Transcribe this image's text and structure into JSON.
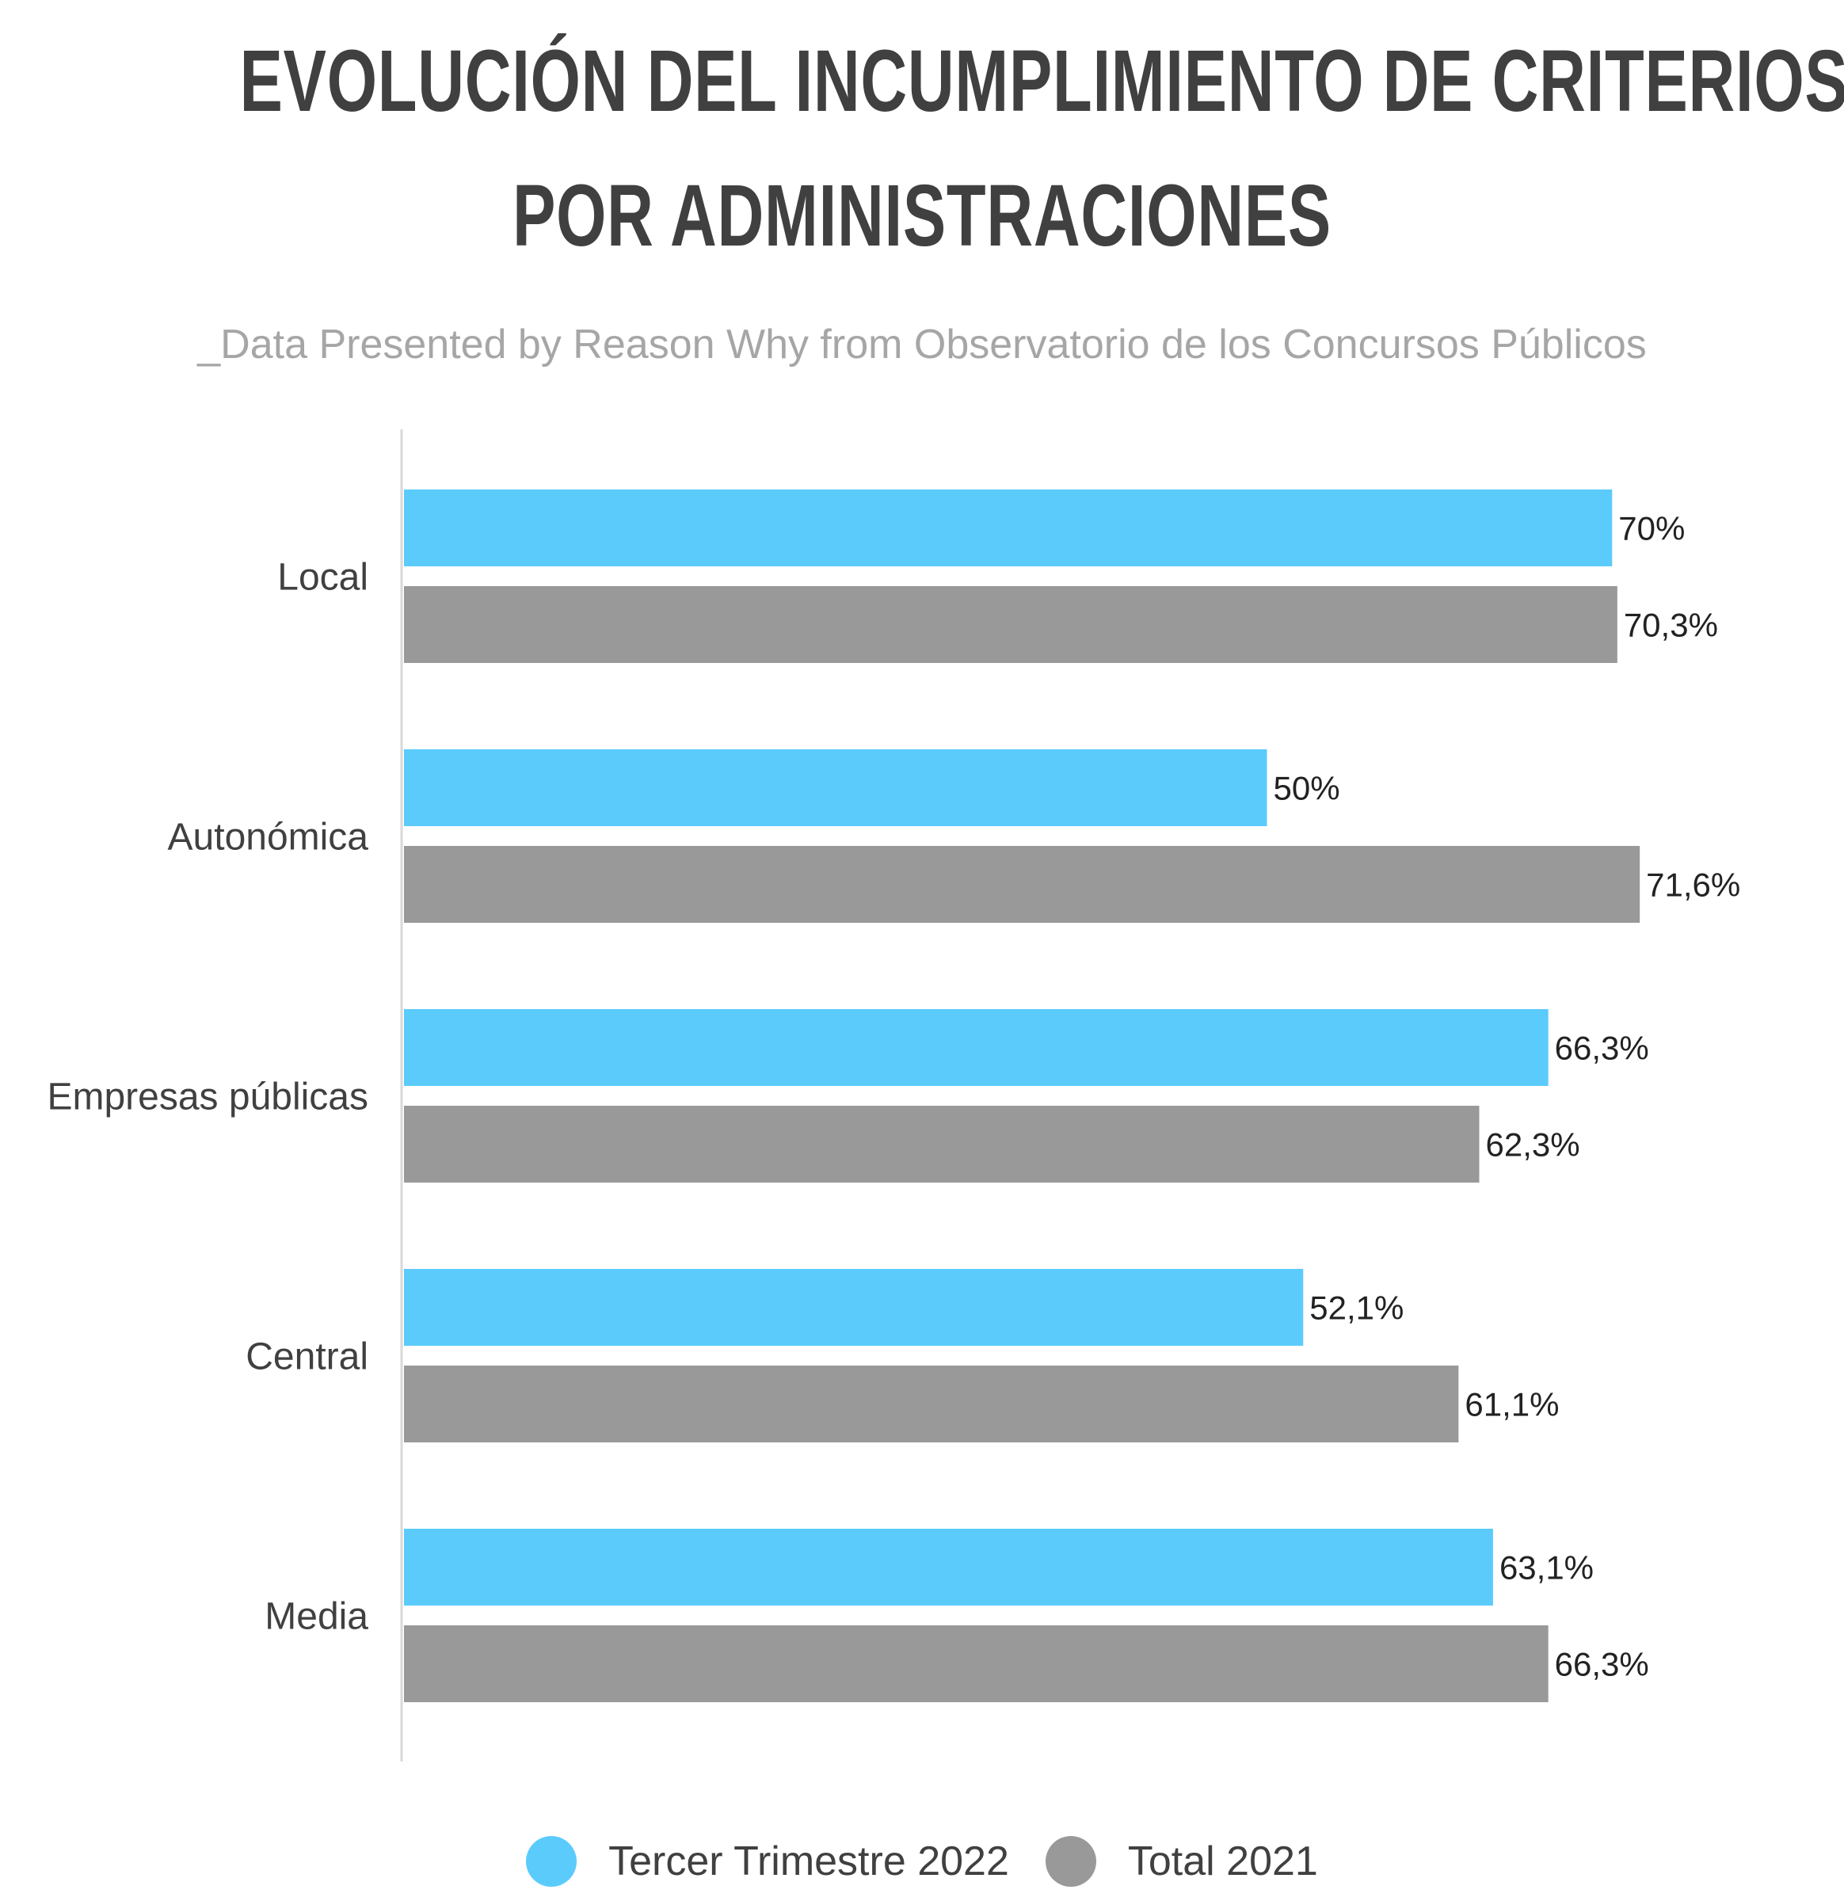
{
  "chart_data": {
    "type": "bar",
    "orientation": "horizontal",
    "title": {
      "line1": "EVOLUCIÓN DEL INCUMPLIMIENTO DE CRITERIOS",
      "line2": "POR ADMINISTRACIONES"
    },
    "subtitle": "_Data Presented by Reason Why from Observatorio de los Concursos Públicos",
    "categories": [
      "Local",
      "Autonómica",
      "Empresas públicas",
      "Central",
      "Media"
    ],
    "series": [
      {
        "name": "Tercer Trimestre 2022",
        "color": "#5bcbfc",
        "values": [
          70,
          50,
          66.3,
          52.1,
          63.1
        ],
        "labels": [
          "70%",
          "50%",
          "66,3%",
          "52,1%",
          "63,1%"
        ]
      },
      {
        "name": "Total 2021",
        "color": "#999999",
        "values": [
          70.3,
          71.6,
          62.3,
          61.1,
          66.3
        ],
        "labels": [
          "70,3%",
          "71,6%",
          "62,3%",
          "61,1%",
          "66,3%"
        ]
      }
    ],
    "xlim": [
      0,
      100
    ],
    "grid": false,
    "legend_position": "bottom"
  }
}
